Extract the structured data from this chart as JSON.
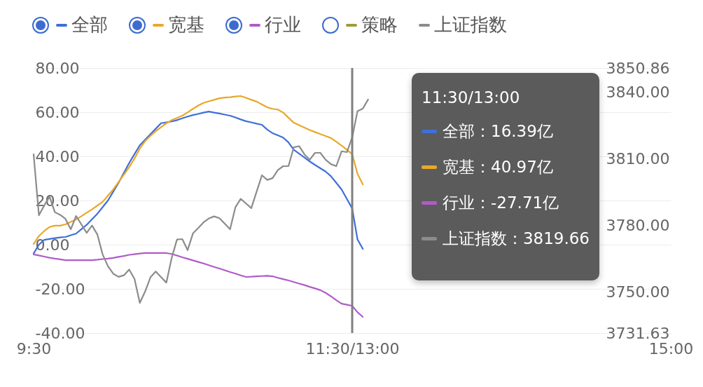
{
  "chart_data": {
    "type": "line",
    "legend": "top left",
    "grid": "y",
    "categories": [
      "9:30",
      null,
      null,
      null,
      null,
      null,
      null,
      null,
      null,
      null,
      null,
      null,
      null,
      null,
      null,
      null,
      null,
      null,
      null,
      null,
      null,
      null,
      null,
      null,
      null,
      null,
      null,
      null,
      null,
      null,
      null,
      null,
      null,
      null,
      null,
      null,
      null,
      null,
      null,
      null,
      null,
      null,
      null,
      null,
      null,
      null,
      null,
      null,
      null,
      null,
      null,
      null,
      null,
      null,
      null,
      null,
      null,
      null,
      null,
      null,
      "11:30/13:00",
      null,
      null,
      null,
      null,
      null,
      null,
      null,
      null,
      null,
      null,
      null,
      null,
      null,
      null,
      null,
      null,
      null,
      null,
      null,
      null,
      null,
      null,
      null,
      null,
      null,
      null,
      null,
      null,
      null,
      null,
      null,
      null,
      null,
      null,
      null,
      null,
      null,
      null,
      null,
      null,
      null,
      null,
      null,
      null,
      null,
      null,
      null,
      null,
      null,
      null,
      null,
      null,
      null,
      null,
      null,
      null,
      null,
      null,
      null,
      "15:00"
    ],
    "ylim": [
      -40,
      80
    ],
    "yticks": [
      {
        "value": -40,
        "label": "-40.00"
      },
      {
        "value": -20,
        "label": "-20.00"
      },
      {
        "value": 0,
        "label": "0.00"
      },
      {
        "value": 20,
        "label": "20.00"
      },
      {
        "value": 40,
        "label": "40.00"
      },
      {
        "value": 60,
        "label": "60.00"
      },
      {
        "value": 80,
        "label": "80.00"
      }
    ],
    "y2lim": [
      3731.63,
      3850.86
    ],
    "y2ticks": [
      3731.63,
      {
        "value": 3750,
        "label": "3750.00"
      },
      {
        "value": 3780,
        "label": "3780.00"
      },
      {
        "value": 3810,
        "label": "3810.00"
      },
      {
        "value": 3840,
        "label": "3840.00"
      },
      3850.86
    ],
    "series": [
      {
        "name": "全部",
        "color": "#3f6fd8",
        "values": [
          -4,
          0,
          2.2,
          2.6,
          3,
          3.3,
          3.5,
          4.3,
          5,
          7,
          9,
          11.5,
          14,
          17,
          20,
          24,
          28,
          32.5,
          37,
          41,
          45,
          47.5,
          50,
          52.5,
          55,
          55.4,
          55.8,
          56.4,
          57.2,
          58,
          58.7,
          59.2,
          59.8,
          60.3,
          59.8,
          59.4,
          58.9,
          58.4,
          57.6,
          56.7,
          55.9,
          55.4,
          54.8,
          54.3,
          52.1,
          50.5,
          49.5,
          48.5,
          46.3,
          43,
          41.2,
          39.5,
          37.7,
          36.1,
          34.6,
          33.1,
          31,
          28,
          25,
          20.7,
          16.39,
          2.4,
          -1.9,
          null,
          null,
          null,
          null,
          null,
          null,
          null,
          null,
          null,
          null,
          null,
          null,
          null,
          null,
          null,
          null,
          null,
          null,
          null,
          null,
          null,
          null,
          null,
          null,
          null,
          null,
          null,
          null,
          null,
          null,
          null,
          null,
          null,
          null,
          null,
          null,
          null,
          null,
          null,
          null,
          null,
          null,
          null,
          null,
          null,
          null,
          null,
          null,
          null,
          null,
          null,
          null,
          null,
          null,
          null,
          null,
          null,
          null
        ]
      },
      {
        "name": "宽基",
        "color": "#e8a82a",
        "values": [
          0.3,
          3.9,
          6.2,
          8,
          8.6,
          8.6,
          9.2,
          10.3,
          11.4,
          12.9,
          14.5,
          16,
          17.7,
          19.4,
          22.2,
          25,
          28.4,
          31.7,
          35.1,
          39,
          43.5,
          46.9,
          49.3,
          51.4,
          53.2,
          55,
          56.4,
          57.4,
          58.4,
          59.9,
          61.5,
          63,
          64.2,
          64.9,
          65.6,
          66.3,
          66.6,
          66.8,
          67.1,
          67.3,
          66.5,
          65.6,
          64.8,
          63.5,
          62.2,
          61.5,
          61.2,
          59.8,
          57.5,
          55.2,
          54.1,
          53,
          51.9,
          51,
          50.1,
          49.2,
          48.3,
          46.6,
          44.9,
          43,
          40.97,
          32.1,
          27.3,
          null,
          null,
          null,
          null,
          null,
          null,
          null,
          null,
          null,
          null,
          null,
          null,
          null,
          null,
          null,
          null,
          null,
          null,
          null,
          null,
          null,
          null,
          null,
          null,
          null,
          null,
          null,
          null,
          null,
          null,
          null,
          null,
          null,
          null,
          null,
          null,
          null,
          null,
          null,
          null,
          null,
          null,
          null,
          null,
          null,
          null,
          null,
          null,
          null,
          null,
          null,
          null,
          null,
          null,
          null,
          null,
          null,
          null
        ]
      },
      {
        "name": "行业",
        "color": "#b05cc8",
        "values": [
          -4.4,
          -4.9,
          -5.4,
          -5.9,
          -6.3,
          -6.6,
          -7,
          -7,
          -7,
          -7,
          -7,
          -7,
          -6.8,
          -6.5,
          -6.3,
          -6,
          -5.5,
          -5.1,
          -4.6,
          -4.3,
          -4,
          -3.8,
          -3.8,
          -3.8,
          -3.8,
          -3.8,
          -4.2,
          -4.9,
          -5.7,
          -6.4,
          -7.1,
          -7.8,
          -8.5,
          -9.3,
          -10.1,
          -10.8,
          -11.6,
          -12.4,
          -13.1,
          -13.9,
          -14.6,
          -14.5,
          -14.3,
          -14.2,
          -14.1,
          -14.3,
          -15,
          -15.6,
          -16.2,
          -16.9,
          -17.6,
          -18.3,
          -19.1,
          -19.8,
          -20.6,
          -21.8,
          -23.4,
          -25.1,
          -26.7,
          -27.2,
          -27.71,
          -30.6,
          -32.7,
          null,
          null,
          null,
          null,
          null,
          null,
          null,
          null,
          null,
          null,
          null,
          null,
          null,
          null,
          null,
          null,
          null,
          null,
          null,
          null,
          null,
          null,
          null,
          null,
          null,
          null,
          null,
          null,
          null,
          null,
          null,
          null,
          null,
          null,
          null,
          null,
          null,
          null,
          null,
          null,
          null,
          null,
          null,
          null,
          null,
          null,
          null,
          null,
          null,
          null,
          null,
          null,
          null,
          null,
          null,
          null,
          null,
          null
        ]
      },
      {
        "name": "策略",
        "color": "#a09a3c",
        "values": [
          null,
          null,
          null,
          null,
          null,
          null,
          null,
          null,
          null,
          null,
          null,
          null,
          null,
          null,
          null,
          null,
          null,
          null,
          null,
          null,
          null,
          null,
          null,
          null,
          null,
          null,
          null,
          null,
          null,
          null,
          null,
          null,
          null,
          null,
          null,
          null,
          null,
          null,
          null,
          null,
          null,
          null,
          null,
          null,
          null,
          null,
          null,
          null,
          null,
          null,
          null,
          null,
          null,
          null,
          null,
          null,
          null,
          null,
          null,
          null,
          null,
          null,
          null,
          null,
          null,
          null,
          null,
          null,
          null,
          null,
          null,
          null,
          null,
          null,
          null,
          null,
          null,
          null,
          null,
          null,
          null,
          null,
          null,
          null,
          null,
          null,
          null,
          null,
          null,
          null,
          null,
          null,
          null,
          null,
          null,
          null,
          null,
          null,
          null,
          null,
          null,
          null,
          null,
          null,
          null,
          null,
          null,
          null,
          null,
          null,
          null,
          null,
          null,
          null,
          null,
          null,
          null,
          null,
          null,
          null,
          null
        ]
      },
      {
        "name": "上证指数",
        "color": "#8c8c8c",
        "axis": "y2",
        "values": [
          3812,
          3784.6,
          3789,
          3793,
          3786,
          3784.8,
          3783,
          3778.3,
          3784.3,
          3780.5,
          3776.7,
          3780,
          3776,
          3767,
          3761.7,
          3758.3,
          3756.9,
          3757.6,
          3760.2,
          3756,
          3745.2,
          3750.3,
          3756.7,
          3759.3,
          3756.8,
          3754.3,
          3765.4,
          3773.7,
          3773.9,
          3768.9,
          3776.4,
          3778.9,
          3781.4,
          3783.2,
          3784.1,
          3783.3,
          3780.8,
          3778.3,
          3788.2,
          3792,
          3789.9,
          3787.8,
          3795.2,
          3802.6,
          3800.5,
          3801.3,
          3804.9,
          3806.7,
          3806.7,
          3815.2,
          3815.7,
          3812,
          3809.6,
          3812.7,
          3812.7,
          3809.6,
          3807.6,
          3806.7,
          3813.4,
          3813,
          3819.66,
          3831.5,
          3832.6,
          3836.7,
          null,
          null,
          null,
          null,
          null,
          null,
          null,
          null,
          null,
          null,
          null,
          null,
          null,
          null,
          null,
          null,
          null,
          null,
          null,
          null,
          null,
          null,
          null,
          null,
          null,
          null,
          null,
          null,
          null,
          null,
          null,
          null,
          null,
          null,
          null,
          null,
          null,
          null,
          null,
          null,
          null,
          null,
          null,
          null,
          null,
          null,
          null,
          null,
          null,
          null,
          null,
          null,
          null,
          null,
          null,
          null,
          null
        ]
      }
    ],
    "ref_lines": [
      {
        "axis": "x",
        "value": "11:30/13:00",
        "color": "#808080"
      }
    ],
    "annotations": [
      "11:30/13:00",
      "全部：16.39亿",
      "宽基：40.97亿",
      "行业：-27.71亿",
      "上证指数：3819.66"
    ]
  }
}
